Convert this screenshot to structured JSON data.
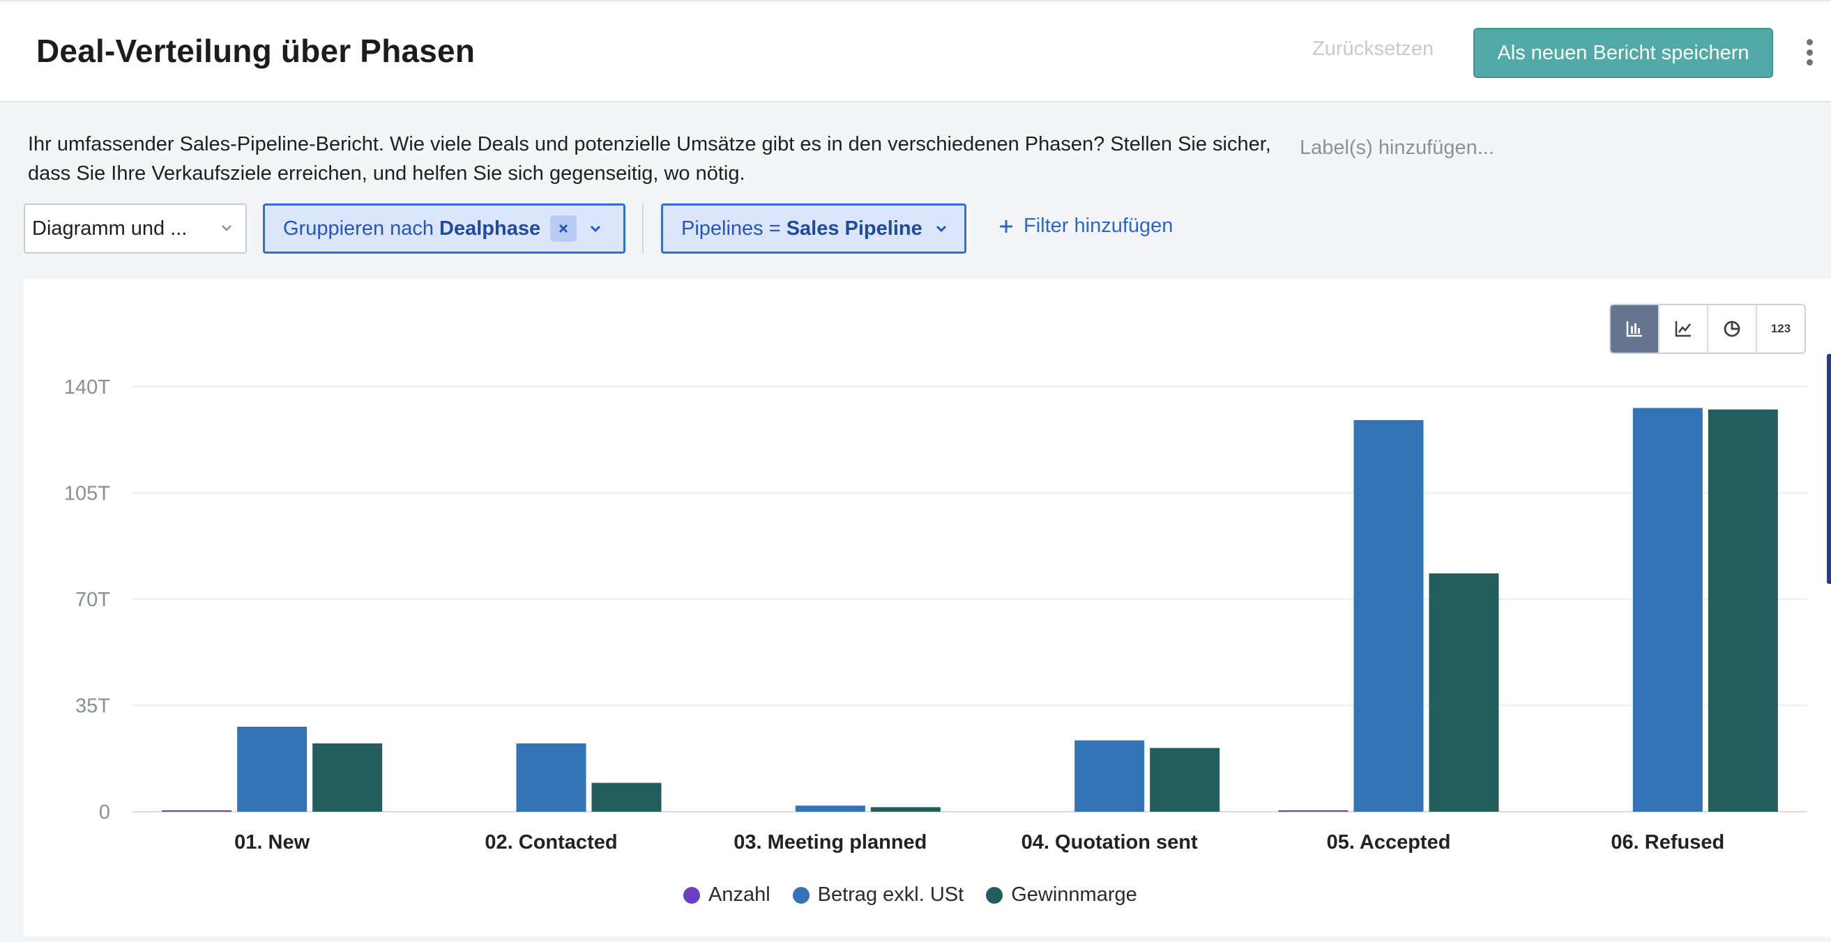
{
  "header": {
    "title": "Deal-Verteilung über Phasen",
    "reset_label": "Zurücksetzen",
    "save_label": "Als neuen Bericht speichern"
  },
  "description": "Ihr umfassender Sales-Pipeline-Bericht. Wie viele Deals und potenzielle Umsätze gibt es in den verschiedenen Phasen? Stellen Sie sicher, dass Sie Ihre Verkaufsziele erreichen, und helfen Sie sich gegenseitig, wo nötig.",
  "labels_placeholder": "Label(s) hinzufügen...",
  "controls": {
    "view_select": "Diagramm und ...",
    "group_prefix": "Gruppieren nach",
    "group_value": "Dealphase",
    "pipeline_prefix": "Pipelines =",
    "pipeline_value": "Sales Pipeline",
    "add_filter": "Filter hinzufügen"
  },
  "chart_types": [
    {
      "name": "bar-chart-icon",
      "active": true
    },
    {
      "name": "line-chart-icon",
      "active": false
    },
    {
      "name": "pie-chart-icon",
      "active": false
    },
    {
      "name": "number-icon",
      "label": "123",
      "active": false
    }
  ],
  "colors": {
    "accent": "#52aaa8",
    "anzahl": "#6a3fc8",
    "betrag": "#3372b5",
    "gewinn": "#245e5c"
  },
  "chart_data": {
    "type": "bar",
    "categories": [
      "01. New",
      "02. Contacted",
      "03. Meeting planned",
      "04. Quotation sent",
      "05. Accepted",
      "06. Refused"
    ],
    "series": [
      {
        "name": "Anzahl",
        "color": "#6a3fc8",
        "values": [
          0.2,
          0,
          0,
          0,
          0.2,
          0
        ]
      },
      {
        "name": "Betrag exkl. USt",
        "color": "#3372b5",
        "values": [
          28,
          22.5,
          2,
          23.5,
          129,
          133
        ]
      },
      {
        "name": "Gewinnmarge",
        "color": "#245e5c",
        "values": [
          22.5,
          9.5,
          1.5,
          21,
          78.5,
          132.5
        ]
      }
    ],
    "y_ticks": [
      "0",
      "35T",
      "70T",
      "105T",
      "140T"
    ],
    "ylim": [
      0,
      140
    ],
    "grid": true,
    "legend": "bottom-center"
  }
}
